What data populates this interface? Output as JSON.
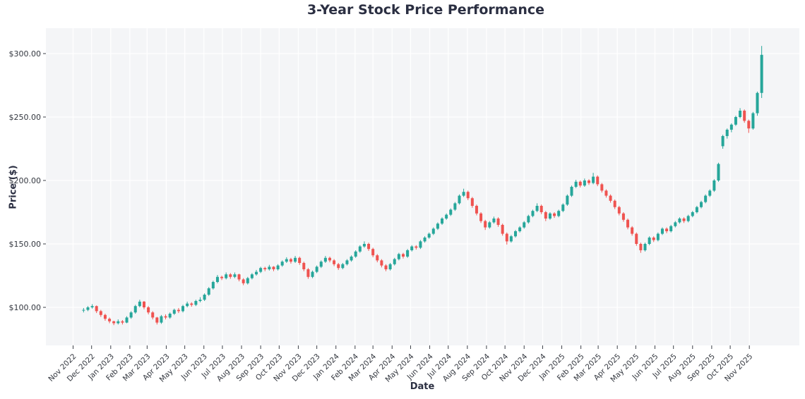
{
  "chart": {
    "title": "3-Year Stock Price Performance",
    "xlabel": "Date",
    "ylabel": "Price ($)"
  },
  "chart_data": {
    "type": "candlestick",
    "title": "3-Year Stock Price Performance",
    "xlabel": "Date",
    "ylabel": "Price ($)",
    "interval": "weekly",
    "start_date": "2022-11-18",
    "interval_days": 7,
    "ylim": [
      70,
      320
    ],
    "grid": true,
    "yticks": [
      100,
      150,
      200,
      250,
      300
    ],
    "ytick_labels": [
      "$100.00",
      "$150.00",
      "$200.00",
      "$250.00",
      "$300.00"
    ],
    "xtick_labels": [
      "Nov 2022",
      "Dec 2022",
      "Jan 2023",
      "Feb 2023",
      "Mar 2023",
      "Apr 2023",
      "May 2023",
      "Jun 2023",
      "Jul 2023",
      "Aug 2023",
      "Sep 2023",
      "Oct 2023",
      "Nov 2023",
      "Dec 2023",
      "Jan 2024",
      "Feb 2024",
      "Mar 2024",
      "Apr 2024",
      "May 2024",
      "Jun 2024",
      "Jul 2024",
      "Aug 2024",
      "Sep 2024",
      "Oct 2024",
      "Nov 2024",
      "Dec 2024",
      "Jan 2025",
      "Feb 2025",
      "Mar 2025",
      "Apr 2025",
      "May 2025",
      "Jun 2025",
      "Jul 2025",
      "Aug 2025",
      "Sep 2025",
      "Oct 2025",
      "Nov 2025"
    ],
    "colors": {
      "up": "#26a69a",
      "down": "#ef5350",
      "panel_bg": "#f4f5f7",
      "grid": "#ffffff",
      "text": "#2b2f42",
      "tick_text": "#33373f",
      "tick_mark": "#3c4049"
    },
    "ohlc": [
      [
        97.5,
        99.5,
        96,
        98
      ],
      [
        98,
        101,
        97,
        100
      ],
      [
        100,
        102.5,
        99,
        101
      ],
      [
        101,
        101.5,
        95.5,
        97
      ],
      [
        97,
        98,
        92.5,
        94
      ],
      [
        94,
        95,
        89.5,
        91
      ],
      [
        91,
        92,
        87.5,
        89
      ],
      [
        89,
        89.5,
        86,
        87.5
      ],
      [
        87.5,
        90.5,
        86.5,
        89
      ],
      [
        89,
        90,
        86.5,
        88
      ],
      [
        88,
        93,
        87.5,
        92
      ],
      [
        92,
        97,
        91,
        96
      ],
      [
        96,
        102,
        95,
        101
      ],
      [
        101,
        106,
        100,
        104.5
      ],
      [
        104.5,
        105,
        98.5,
        100
      ],
      [
        100,
        101,
        94.5,
        96
      ],
      [
        96,
        97,
        90.5,
        92
      ],
      [
        92,
        92.5,
        86.5,
        88
      ],
      [
        88,
        94,
        87,
        93
      ],
      [
        93,
        94.5,
        90.5,
        92
      ],
      [
        92,
        96,
        91,
        95
      ],
      [
        95,
        99,
        94,
        98
      ],
      [
        98,
        99.5,
        95.5,
        97
      ],
      [
        97,
        102,
        96,
        101
      ],
      [
        101,
        104.5,
        100,
        103
      ],
      [
        103,
        104,
        100.5,
        102
      ],
      [
        102,
        106,
        101,
        105
      ],
      [
        105,
        108,
        104,
        106
      ],
      [
        106,
        111,
        105,
        110
      ],
      [
        110,
        116,
        109,
        115
      ],
      [
        115,
        121,
        114,
        120
      ],
      [
        120,
        125.5,
        119,
        124
      ],
      [
        124,
        125,
        121.5,
        123
      ],
      [
        123,
        127.5,
        122,
        126
      ],
      [
        126,
        127,
        122.5,
        124
      ],
      [
        124,
        127.5,
        123,
        126
      ],
      [
        126,
        126.5,
        120.5,
        122
      ],
      [
        122,
        123,
        117.5,
        119
      ],
      [
        119,
        124,
        118,
        123
      ],
      [
        123,
        127,
        122,
        126
      ],
      [
        126,
        129.5,
        125,
        128
      ],
      [
        128,
        132,
        127,
        131
      ],
      [
        131,
        132,
        128.5,
        130
      ],
      [
        130,
        133.5,
        129,
        132
      ],
      [
        132,
        132.5,
        128.5,
        130
      ],
      [
        130,
        134,
        129,
        133
      ],
      [
        133,
        137,
        132,
        136
      ],
      [
        136,
        139.5,
        135,
        138
      ],
      [
        138,
        139,
        134.5,
        136
      ],
      [
        136,
        140.5,
        135,
        139
      ],
      [
        139,
        140,
        133.5,
        135
      ],
      [
        135,
        136,
        128.5,
        130
      ],
      [
        130,
        131,
        122.5,
        124
      ],
      [
        124,
        129,
        123,
        128
      ],
      [
        128,
        133,
        127,
        132
      ],
      [
        132,
        137,
        131,
        136
      ],
      [
        136,
        140.5,
        135,
        139
      ],
      [
        139,
        140,
        135.5,
        137
      ],
      [
        137,
        138,
        132.5,
        134
      ],
      [
        134,
        135,
        129.5,
        131
      ],
      [
        131,
        135,
        130,
        134
      ],
      [
        134,
        138,
        133,
        137
      ],
      [
        137,
        141,
        136,
        140
      ],
      [
        140,
        145,
        139,
        144
      ],
      [
        144,
        149,
        143,
        148
      ],
      [
        148,
        152,
        147,
        150
      ],
      [
        150,
        151,
        144.5,
        146
      ],
      [
        146,
        147,
        139.5,
        141
      ],
      [
        141,
        142,
        135.5,
        137
      ],
      [
        137,
        138,
        131.5,
        133
      ],
      [
        133,
        134,
        128.5,
        130
      ],
      [
        130,
        135,
        129,
        134
      ],
      [
        134,
        139,
        133,
        138
      ],
      [
        138,
        143,
        137,
        142
      ],
      [
        142,
        143,
        138.5,
        140
      ],
      [
        140,
        146,
        139,
        145
      ],
      [
        145,
        149,
        144,
        148
      ],
      [
        148,
        149,
        145.5,
        147
      ],
      [
        147,
        153,
        146,
        152
      ],
      [
        152,
        156,
        151,
        155
      ],
      [
        155,
        159,
        154,
        158
      ],
      [
        158,
        163,
        157,
        162
      ],
      [
        162,
        167,
        161,
        166
      ],
      [
        166,
        171,
        165,
        170
      ],
      [
        170,
        174,
        169,
        173
      ],
      [
        173,
        178,
        172,
        177
      ],
      [
        177,
        183,
        176,
        182
      ],
      [
        182,
        189,
        181,
        188
      ],
      [
        188,
        193.5,
        187,
        191
      ],
      [
        191,
        192,
        184.5,
        186
      ],
      [
        186,
        187,
        178.5,
        180
      ],
      [
        180,
        181,
        172.5,
        174
      ],
      [
        174,
        175,
        166.5,
        168
      ],
      [
        168,
        169,
        161,
        163
      ],
      [
        163,
        168,
        162,
        167
      ],
      [
        167,
        171.5,
        166,
        170
      ],
      [
        170,
        171,
        163.5,
        165
      ],
      [
        165,
        166,
        156.5,
        158
      ],
      [
        158,
        159,
        149.5,
        152
      ],
      [
        152,
        157,
        151,
        156
      ],
      [
        156,
        161,
        155,
        160
      ],
      [
        160,
        164,
        159,
        163
      ],
      [
        163,
        168,
        162,
        167
      ],
      [
        167,
        173,
        166,
        172
      ],
      [
        172,
        177,
        171,
        176
      ],
      [
        176,
        182,
        175,
        180
      ],
      [
        180,
        181,
        173.5,
        175
      ],
      [
        175,
        176,
        168,
        170
      ],
      [
        170,
        175,
        169,
        174
      ],
      [
        174,
        175,
        170.5,
        172
      ],
      [
        172,
        177,
        171,
        176
      ],
      [
        176,
        182,
        175,
        181
      ],
      [
        181,
        189,
        180,
        188
      ],
      [
        188,
        196,
        187,
        195
      ],
      [
        195,
        200.5,
        194,
        199
      ],
      [
        199,
        200,
        194.5,
        196
      ],
      [
        196,
        201.5,
        195,
        200
      ],
      [
        200,
        201,
        196.5,
        198
      ],
      [
        198,
        206,
        197,
        203
      ],
      [
        203,
        204,
        195.5,
        197
      ],
      [
        197,
        198,
        190.5,
        192
      ],
      [
        192,
        193,
        186.5,
        188
      ],
      [
        188,
        189,
        182.5,
        184
      ],
      [
        184,
        185,
        177.5,
        179
      ],
      [
        179,
        180,
        172.5,
        174
      ],
      [
        174,
        175,
        167.5,
        169
      ],
      [
        169,
        170,
        161.5,
        163
      ],
      [
        163,
        164,
        156.5,
        158
      ],
      [
        158,
        159,
        148.5,
        150
      ],
      [
        150,
        151,
        143,
        145
      ],
      [
        145,
        151,
        144,
        150
      ],
      [
        150,
        156,
        149,
        155
      ],
      [
        155,
        156,
        151.5,
        153
      ],
      [
        153,
        159,
        152,
        158
      ],
      [
        158,
        163,
        157,
        162
      ],
      [
        162,
        163,
        158.5,
        160
      ],
      [
        160,
        165,
        159,
        164
      ],
      [
        164,
        168,
        163,
        167
      ],
      [
        167,
        171,
        166,
        170
      ],
      [
        170,
        171,
        166.5,
        168
      ],
      [
        168,
        173,
        167,
        172
      ],
      [
        172,
        176,
        171,
        175
      ],
      [
        175,
        180,
        174,
        179
      ],
      [
        179,
        184,
        178,
        183
      ],
      [
        183,
        189,
        182,
        188
      ],
      [
        188,
        193,
        187,
        192
      ],
      [
        192,
        201,
        191,
        200
      ],
      [
        200,
        214,
        199,
        213
      ],
      [
        227,
        236,
        225,
        235
      ],
      [
        235,
        241,
        233,
        240
      ],
      [
        240,
        245,
        238,
        244
      ],
      [
        244,
        251,
        243,
        250
      ],
      [
        250,
        257,
        249,
        255
      ],
      [
        255,
        256,
        245.5,
        247
      ],
      [
        247,
        248,
        237.5,
        241
      ],
      [
        241,
        254,
        240,
        253
      ],
      [
        253,
        270,
        251,
        269
      ],
      [
        269,
        306,
        265,
        299
      ]
    ]
  }
}
